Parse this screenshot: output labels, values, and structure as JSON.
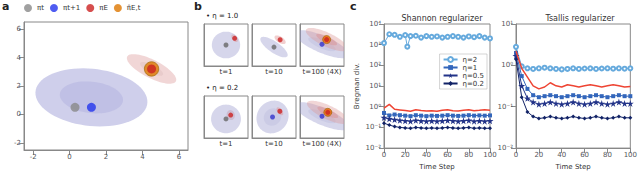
{
  "chart_data": [
    {
      "type": "scatter",
      "annotations": [
        {
          "text": "a"
        }
      ],
      "ellipses": [
        {
          "cx": 1.2,
          "cy": 1.2,
          "w": 6.2,
          "h": 4.0,
          "angle": -10,
          "color": "#8888cc"
        },
        {
          "cx": 1.2,
          "cy": 1.2,
          "w": 3.5,
          "h": 2.2,
          "angle": -10,
          "color": "#aaaadd"
        },
        {
          "cx": 4.5,
          "cy": 3.2,
          "w": 1.2,
          "h": 3.2,
          "angle": 55,
          "color": "#dd9999"
        },
        {
          "cx": 4.5,
          "cy": 3.2,
          "w": 0.55,
          "h": 1.5,
          "angle": 55,
          "color": "#ddbbbb"
        }
      ],
      "series": [
        {
          "name": "πt",
          "color": "#888888",
          "marker": "circle",
          "x": [
            0.3
          ],
          "y": [
            0.5
          ]
        },
        {
          "name": "πt+1",
          "color": "#2233ee",
          "marker": "circle",
          "x": [
            1.2
          ],
          "y": [
            0.5
          ]
        },
        {
          "name": "πE",
          "color": "#cc2222",
          "marker": "circle",
          "x": [
            4.5
          ],
          "y": [
            3.2
          ]
        },
        {
          "name": "π̄E,t",
          "color": "#dd7700",
          "marker": "circle",
          "x": [
            4.5
          ],
          "y": [
            3.2
          ]
        }
      ],
      "xlim": [
        -2.5,
        6.5
      ],
      "ylim": [
        -2.5,
        6.5
      ],
      "xticks": [
        -2,
        0,
        2,
        4,
        6
      ],
      "yticks": [
        -2,
        0,
        2,
        4,
        6
      ],
      "legend": "top",
      "grid": false
    },
    {
      "type": "scatter",
      "annotations": [
        {
          "text": "b"
        },
        {
          "text": "• η = 1.0"
        }
      ],
      "ellipses": [
        {
          "cx": 0,
          "cy": 0,
          "w": 1.8,
          "h": 1.4,
          "angle": 0,
          "color": "#9999cc"
        },
        {
          "cx": 0.55,
          "cy": 0.35,
          "w": 0.28,
          "h": 0.5,
          "angle": 48,
          "color": "#dd8888"
        }
      ],
      "series": [
        {
          "color": "#666666",
          "marker": "circle",
          "x": [
            0
          ],
          "y": [
            0
          ]
        },
        {
          "color": "#cc2222",
          "marker": "circle",
          "x": [
            0.55
          ],
          "y": [
            0.35
          ]
        }
      ],
      "xlim": [
        -1.4,
        1.4
      ],
      "ylim": [
        -1.1,
        1.1
      ],
      "xlabel": "t=1",
      "tick_labels": false
    },
    {
      "type": "scatter",
      "ellipses": [
        {
          "cx": 0.1,
          "cy": 0.2,
          "w": 0.5,
          "h": 1.4,
          "angle": 50,
          "color": "#9999cc"
        },
        {
          "cx": 0.35,
          "cy": 0.55,
          "w": 0.28,
          "h": 0.55,
          "angle": 50,
          "color": "#dd8888"
        }
      ],
      "series": [
        {
          "color": "#666666",
          "marker": "circle",
          "x": [
            0.1
          ],
          "y": [
            0.2
          ]
        },
        {
          "color": "#cc2222",
          "marker": "circle",
          "x": [
            0.35
          ],
          "y": [
            0.55
          ]
        }
      ],
      "xlim": [
        -0.8,
        1.0
      ],
      "ylim": [
        -0.7,
        1.3
      ],
      "xlabel": "t=10",
      "tick_labels": false
    },
    {
      "type": "scatter",
      "ellipses": [
        {
          "cx": 0.05,
          "cy": 0.3,
          "w": 1.0,
          "h": 2.8,
          "angle": 55,
          "color": "#9999cc"
        },
        {
          "cx": 0.05,
          "cy": 0.3,
          "w": 0.5,
          "h": 1.4,
          "angle": 55,
          "color": "#bbbbdd"
        },
        {
          "cx": 0.25,
          "cy": 0.6,
          "w": 0.8,
          "h": 2.2,
          "angle": 52,
          "color": "#dd9999"
        },
        {
          "cx": 0.25,
          "cy": 0.6,
          "w": 0.38,
          "h": 1.1,
          "angle": 52,
          "color": "#dd8888"
        }
      ],
      "series": [
        {
          "color": "#3333cc",
          "marker": "circle",
          "x": [
            0.05
          ],
          "y": [
            0.3
          ]
        },
        {
          "color": "#ee6600",
          "marker": "circle",
          "x": [
            0.25
          ],
          "y": [
            0.6
          ]
        },
        {
          "color": "#cc2222",
          "marker": "circle",
          "x": [
            0.25
          ],
          "y": [
            0.6
          ]
        }
      ],
      "xlim": [
        -0.9,
        1.0
      ],
      "ylim": [
        -1.1,
        1.6
      ],
      "xlabel": "t=100 (4X)",
      "tick_labels": false
    },
    {
      "type": "scatter",
      "annotations": [
        {
          "text": "• η = 0.2"
        }
      ],
      "ellipses": [
        {
          "cx": 0.3,
          "cy": 0.1,
          "w": 0.5,
          "h": 0.55,
          "angle": 45,
          "color": "#dd9999"
        },
        {
          "cx": 0,
          "cy": -0.1,
          "w": 1.9,
          "h": 1.5,
          "angle": 0,
          "color": "#9999cc"
        }
      ],
      "series": [
        {
          "color": "#666666",
          "marker": "circle",
          "x": [
            0
          ],
          "y": [
            -0.1
          ]
        },
        {
          "color": "#cc2222",
          "marker": "circle",
          "x": [
            0.3
          ],
          "y": [
            0.1
          ]
        }
      ],
      "xlim": [
        -1.4,
        1.4
      ],
      "ylim": [
        -1.1,
        1.1
      ],
      "xlabel": "t=1",
      "tick_labels": false
    },
    {
      "type": "scatter",
      "ellipses": [
        {
          "cx": 0,
          "cy": 0,
          "w": 2.2,
          "h": 1.7,
          "angle": 10,
          "color": "#9999cc"
        },
        {
          "cx": 0,
          "cy": 0,
          "w": 1.2,
          "h": 0.9,
          "angle": 10,
          "color": "#bbbbdd"
        },
        {
          "cx": 0.5,
          "cy": 0.3,
          "w": 0.28,
          "h": 0.55,
          "angle": 50,
          "color": "#dd8888"
        }
      ],
      "series": [
        {
          "color": "#3333cc",
          "marker": "circle",
          "x": [
            0
          ],
          "y": [
            0
          ]
        },
        {
          "color": "#cc2222",
          "marker": "circle",
          "x": [
            0.5
          ],
          "y": [
            0.3
          ]
        }
      ],
      "xlim": [
        -1.4,
        1.6
      ],
      "ylim": [
        -1.1,
        1.1
      ],
      "xlabel": "t=10",
      "tick_labels": false
    },
    {
      "type": "scatter",
      "ellipses": [
        {
          "cx": 0.05,
          "cy": 0.3,
          "w": 1.0,
          "h": 2.8,
          "angle": 55,
          "color": "#9999cc"
        },
        {
          "cx": 0.05,
          "cy": 0.3,
          "w": 0.5,
          "h": 1.4,
          "angle": 55,
          "color": "#bbbbdd"
        },
        {
          "cx": 0.3,
          "cy": 0.55,
          "w": 0.8,
          "h": 2.2,
          "angle": 52,
          "color": "#dd9999"
        },
        {
          "cx": 0.3,
          "cy": 0.55,
          "w": 0.38,
          "h": 1.1,
          "angle": 52,
          "color": "#dd8888"
        }
      ],
      "series": [
        {
          "color": "#3333cc",
          "marker": "circle",
          "x": [
            0.05
          ],
          "y": [
            0.3
          ]
        },
        {
          "color": "#ee6600",
          "marker": "circle",
          "x": [
            0.3
          ],
          "y": [
            0.55
          ]
        },
        {
          "color": "#cc2222",
          "marker": "circle",
          "x": [
            0.3
          ],
          "y": [
            0.55
          ]
        }
      ],
      "xlim": [
        -0.9,
        1.0
      ],
      "ylim": [
        -1.1,
        1.6
      ],
      "xlabel": "t=100 (4X)",
      "tick_labels": false
    },
    {
      "type": "line",
      "title": "Shannon regularizer",
      "annotations": [
        {
          "text": "c"
        }
      ],
      "xlabel": "Time Step",
      "ylabel": "Bregman div.",
      "log": "y",
      "xlim": [
        0,
        100
      ],
      "xticks": [
        0,
        20,
        40,
        60,
        80,
        100
      ],
      "ylim": [
        0.01,
        10000
      ],
      "yticks": [
        {
          "value": 0.01,
          "label": "10⁻²"
        },
        {
          "value": 0.1,
          "label": "10⁻¹"
        },
        {
          "value": 1,
          "label": "10⁰"
        },
        {
          "value": 10,
          "label": "10¹"
        },
        {
          "value": 100,
          "label": "10²"
        },
        {
          "value": 1000,
          "label": "10³"
        },
        {
          "value": 10000,
          "label": "10⁴"
        }
      ],
      "legend": "right",
      "grid": false,
      "series": [
        {
          "name": "η=2",
          "color": "#66aadd",
          "marker": "open-circle",
          "x": [
            0,
            5,
            10,
            15,
            20,
            22,
            25,
            30,
            35,
            40,
            45,
            50,
            55,
            60,
            65,
            70,
            75,
            80,
            85,
            90,
            95,
            100
          ],
          "y": [
            1200,
            3200,
            3000,
            2400,
            2900,
            800,
            2600,
            2700,
            2200,
            2600,
            2400,
            2500,
            2200,
            2400,
            2600,
            2400,
            2200,
            2500,
            2300,
            2600,
            2200,
            2000
          ]
        },
        {
          "color": "#ee4433",
          "marker": "none",
          "x": [
            0,
            5,
            10,
            15,
            20,
            25,
            30,
            35,
            40,
            45,
            50,
            55,
            60,
            65,
            70,
            75,
            80,
            85,
            90,
            95,
            100
          ],
          "y": [
            0.85,
            1.3,
            0.75,
            0.7,
            0.65,
            0.6,
            0.72,
            0.66,
            0.62,
            0.64,
            0.6,
            0.67,
            0.72,
            0.64,
            0.62,
            0.67,
            0.72,
            0.64,
            0.67,
            0.72,
            0.67
          ]
        },
        {
          "name": "η=1",
          "color": "#3366bb",
          "marker": "square",
          "x": [
            0,
            5,
            10,
            15,
            20,
            25,
            30,
            35,
            40,
            45,
            50,
            55,
            60,
            65,
            70,
            75,
            80,
            85,
            90,
            95,
            100
          ],
          "y": [
            0.5,
            0.38,
            0.42,
            0.39,
            0.37,
            0.35,
            0.39,
            0.37,
            0.35,
            0.37,
            0.36,
            0.37,
            0.39,
            0.37,
            0.36,
            0.37,
            0.39,
            0.37,
            0.38,
            0.37,
            0.38
          ]
        },
        {
          "name": "η=0.5",
          "color": "#223388",
          "marker": "star",
          "x": [
            0,
            5,
            10,
            15,
            20,
            25,
            30,
            35,
            40,
            45,
            50,
            55,
            60,
            65,
            70,
            75,
            80,
            85,
            90,
            95,
            100
          ],
          "y": [
            0.3,
            0.26,
            0.24,
            0.22,
            0.21,
            0.2,
            0.22,
            0.21,
            0.2,
            0.21,
            0.2,
            0.21,
            0.22,
            0.21,
            0.2,
            0.21,
            0.22,
            0.2,
            0.21,
            0.2,
            0.21
          ]
        },
        {
          "name": "η=0.2",
          "color": "#112266",
          "marker": "diamond",
          "x": [
            0,
            5,
            10,
            15,
            20,
            25,
            30,
            35,
            40,
            45,
            50,
            55,
            60,
            65,
            70,
            75,
            80,
            85,
            90,
            95,
            100
          ],
          "y": [
            0.16,
            0.13,
            0.11,
            0.1,
            0.095,
            0.09,
            0.1,
            0.095,
            0.09,
            0.095,
            0.09,
            0.095,
            0.1,
            0.095,
            0.09,
            0.095,
            0.1,
            0.09,
            0.095,
            0.09,
            0.092
          ]
        }
      ]
    },
    {
      "type": "line",
      "title": "Tsallis regularizer",
      "xlabel": "Time Step",
      "log": "y",
      "xlim": [
        0,
        100
      ],
      "xticks": [
        0,
        20,
        40,
        60,
        80,
        100
      ],
      "ylim": [
        0.01,
        10
      ],
      "yticks": [
        {
          "value": 0.01,
          "label": "10⁻²"
        },
        {
          "value": 0.1,
          "label": "10⁻¹"
        },
        {
          "value": 1,
          "label": "10⁰"
        },
        {
          "value": 10,
          "label": "10¹"
        }
      ],
      "grid": false,
      "series": [
        {
          "color": "#66aadd",
          "marker": "open-circle",
          "x": [
            0,
            5,
            10,
            15,
            20,
            25,
            30,
            35,
            40,
            45,
            50,
            55,
            60,
            65,
            70,
            75,
            80,
            85,
            90,
            95,
            100
          ],
          "y": [
            2.8,
            0.95,
            0.85,
            0.82,
            0.85,
            0.88,
            0.85,
            0.82,
            0.8,
            0.82,
            0.85,
            0.82,
            0.84,
            0.85,
            0.82,
            0.84,
            0.85,
            0.83,
            0.85,
            0.83,
            0.85
          ]
        },
        {
          "color": "#ee4433",
          "marker": "none",
          "x": [
            0,
            5,
            10,
            15,
            20,
            25,
            30,
            35,
            40,
            45,
            50,
            55,
            60,
            65,
            70,
            75,
            80,
            85,
            90,
            95,
            100
          ],
          "y": [
            2.2,
            0.85,
            0.52,
            0.32,
            0.27,
            0.3,
            0.38,
            0.32,
            0.3,
            0.34,
            0.32,
            0.3,
            0.32,
            0.34,
            0.32,
            0.3,
            0.32,
            0.34,
            0.32,
            0.3,
            0.31
          ]
        },
        {
          "color": "#3366bb",
          "marker": "square",
          "x": [
            0,
            5,
            10,
            15,
            20,
            25,
            30,
            35,
            40,
            45,
            50,
            55,
            60,
            65,
            70,
            75,
            80,
            85,
            90,
            95,
            100
          ],
          "y": [
            2.0,
            0.55,
            0.27,
            0.19,
            0.17,
            0.18,
            0.19,
            0.18,
            0.17,
            0.18,
            0.19,
            0.18,
            0.17,
            0.18,
            0.19,
            0.18,
            0.17,
            0.18,
            0.19,
            0.18,
            0.18
          ]
        },
        {
          "color": "#223388",
          "marker": "star",
          "x": [
            0,
            5,
            10,
            15,
            20,
            25,
            30,
            35,
            40,
            45,
            50,
            55,
            60,
            65,
            70,
            75,
            80,
            85,
            90,
            95,
            100
          ],
          "y": [
            1.7,
            0.32,
            0.16,
            0.13,
            0.115,
            0.12,
            0.13,
            0.12,
            0.115,
            0.12,
            0.13,
            0.12,
            0.115,
            0.12,
            0.13,
            0.12,
            0.115,
            0.12,
            0.13,
            0.12,
            0.12
          ]
        },
        {
          "color": "#112266",
          "marker": "diamond",
          "x": [
            0,
            5,
            10,
            15,
            20,
            25,
            30,
            35,
            40,
            45,
            50,
            55,
            60,
            65,
            70,
            75,
            80,
            85,
            90,
            95,
            100
          ],
          "y": [
            1.4,
            0.17,
            0.075,
            0.058,
            0.052,
            0.054,
            0.058,
            0.054,
            0.052,
            0.054,
            0.058,
            0.054,
            0.052,
            0.054,
            0.058,
            0.054,
            0.052,
            0.054,
            0.058,
            0.054,
            0.054
          ]
        }
      ]
    }
  ]
}
